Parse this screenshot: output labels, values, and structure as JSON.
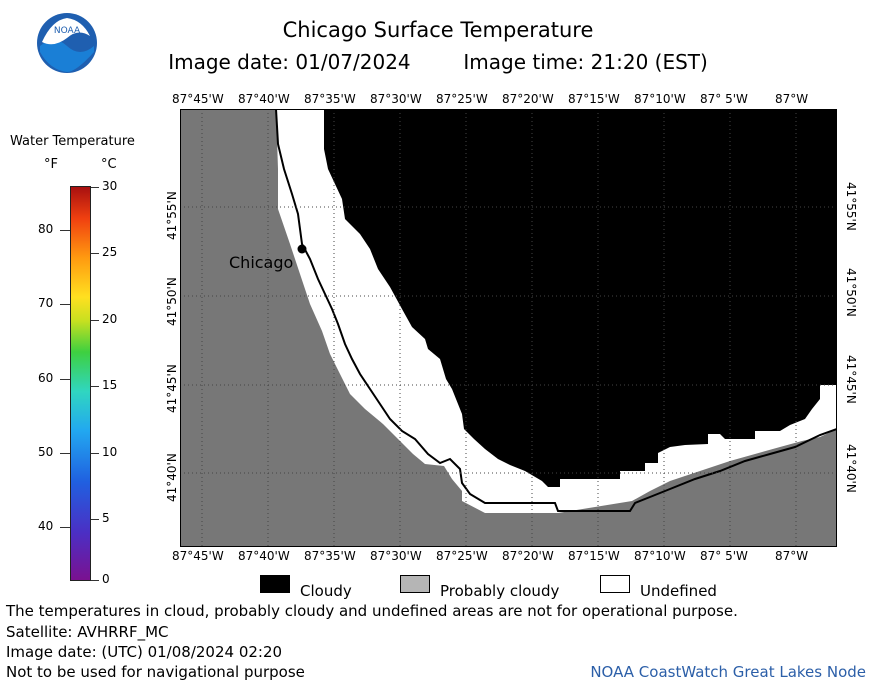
{
  "header": {
    "title": "Chicago Surface Temperature",
    "image_date": "Image date: 01/07/2024",
    "image_time": "Image time: 21:20 (EST)"
  },
  "logo": {
    "text": "NOAA",
    "icon": "noaa-logo-icon"
  },
  "colorbar": {
    "title": "Water Temperature",
    "unit_f": "°F",
    "unit_c": "°C",
    "f_ticks": [
      "80",
      "70",
      "60",
      "50",
      "40"
    ],
    "c_ticks": [
      "30",
      "25",
      "20",
      "15",
      "10",
      "5",
      "0"
    ]
  },
  "map": {
    "lon_labels": [
      "87°45'W",
      "87°40'W",
      "87°35'W",
      "87°30'W",
      "87°25'W",
      "87°20'W",
      "87°15'W",
      "87°10'W",
      "87° 5'W",
      "87°W"
    ],
    "lon_labels_bottom": [
      "87°45'W",
      "87°40'W",
      "87°35'W",
      "87°30'W",
      "87°25'W",
      "87°20'W",
      "87°15'W",
      "87°10'W",
      "87° 5'W",
      "87°W"
    ],
    "lat_labels": [
      "41°55'N",
      "41°50'N",
      "41°45'N",
      "41°40'N"
    ],
    "city_label": "Chicago",
    "colors": {
      "land": "#777777",
      "cloudy": "#000000",
      "probably_cloudy": "#b5b5b5",
      "undefined": "#ffffff"
    }
  },
  "legend": {
    "cloudy": "Cloudy",
    "probably_cloudy": "Probably cloudy",
    "undefined": "Undefined"
  },
  "footer": {
    "note": "The temperatures in cloud, probably cloudy and undefined areas are not for operational purpose.",
    "satellite": "Satellite: AVHRRF_MC",
    "utc_date": "Image date: (UTC) 01/08/2024  02:20",
    "nav": "Not to be used for navigational purpose",
    "node": "NOAA CoastWatch Great Lakes Node"
  }
}
